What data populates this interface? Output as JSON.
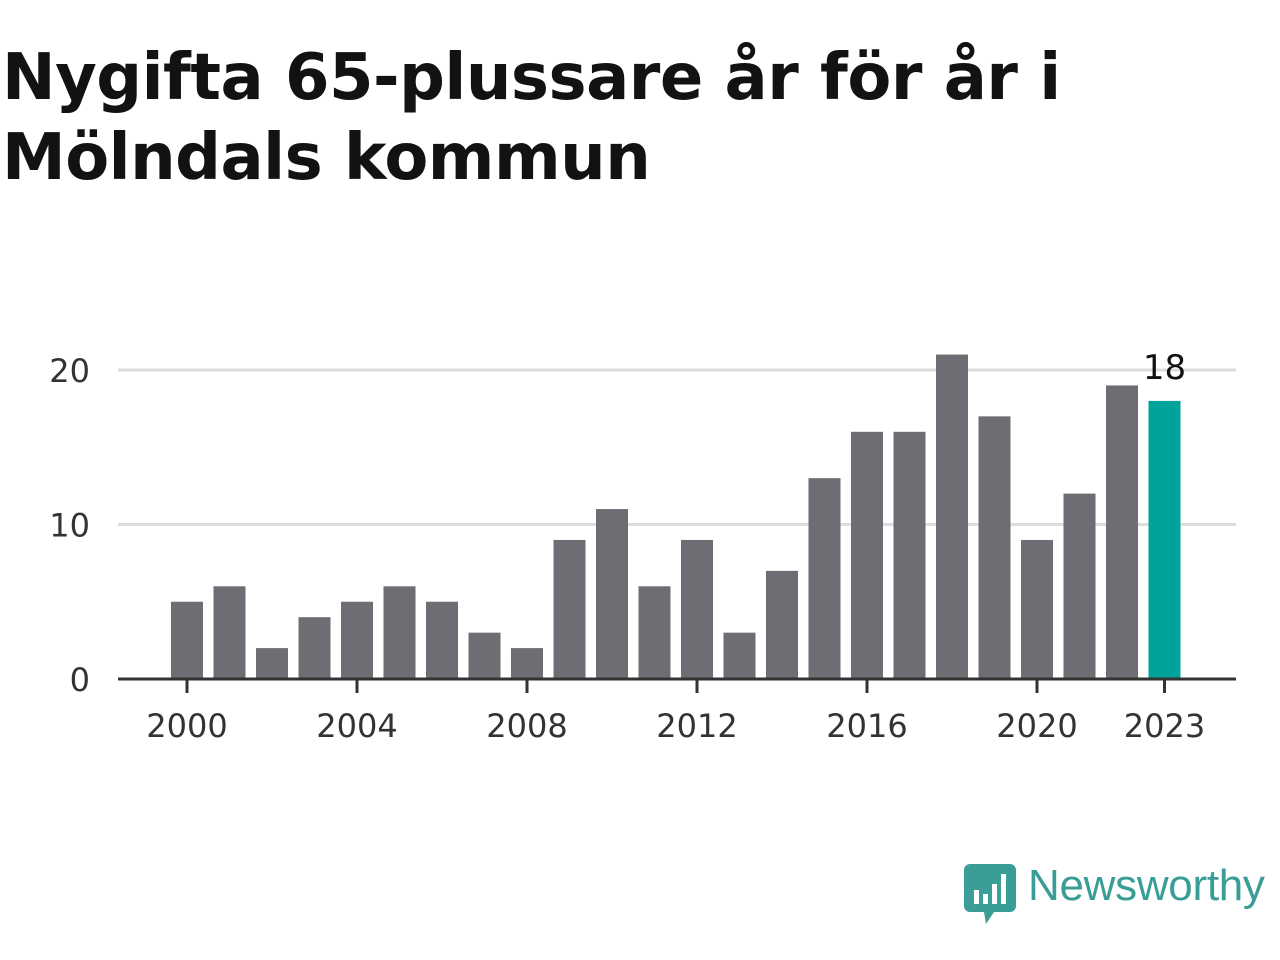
{
  "title": "Nygifta 65-plussare år för år i Mölndals kommun",
  "brand": {
    "name": "Newsworthy",
    "color": "#3a9e96",
    "icon": "newsworthy-logo-icon"
  },
  "chart_data": {
    "type": "bar",
    "title": "Nygifta 65-plussare år för år i Mölndals kommun",
    "categories": [
      "2000",
      "2001",
      "2002",
      "2003",
      "2004",
      "2005",
      "2006",
      "2007",
      "2008",
      "2009",
      "2010",
      "2011",
      "2012",
      "2013",
      "2014",
      "2015",
      "2016",
      "2017",
      "2018",
      "2019",
      "2020",
      "2021",
      "2022",
      "2023"
    ],
    "values": [
      5,
      6,
      2,
      4,
      5,
      6,
      5,
      3,
      2,
      9,
      11,
      6,
      9,
      3,
      7,
      13,
      16,
      16,
      21,
      17,
      9,
      12,
      19,
      18
    ],
    "x_tick_labels": [
      "2000",
      "2004",
      "2008",
      "2012",
      "2016",
      "2020",
      "2023"
    ],
    "y_ticks": [
      0,
      10,
      20
    ],
    "y_tick_labels": [
      "0",
      "10",
      "20"
    ],
    "ylim": [
      0,
      22
    ],
    "grid": true,
    "highlight": {
      "category": "2023",
      "label": "18"
    },
    "colors": {
      "bar": "#6e6d73",
      "highlight": "#00a39a",
      "grid": "#dddddd",
      "axis": "#333333"
    },
    "xlabel": "",
    "ylabel": ""
  }
}
